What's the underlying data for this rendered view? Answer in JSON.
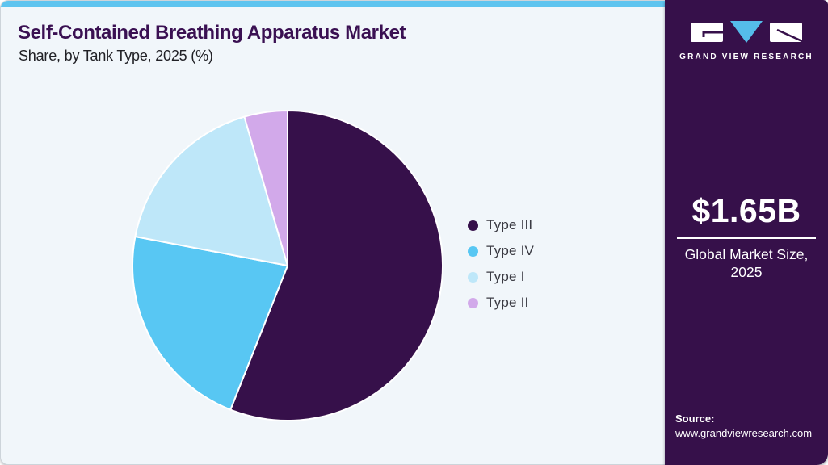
{
  "header": {
    "title": "Self-Contained Breathing Apparatus Market",
    "subtitle": "Share, by Tank Type, 2025 (%)"
  },
  "chart_data": {
    "type": "pie",
    "title": "Self-Contained Breathing Apparatus Market Share, by Tank Type, 2025 (%)",
    "categories": [
      "Type III",
      "Type IV",
      "Type I",
      "Type II"
    ],
    "values": [
      56.0,
      22.0,
      17.5,
      4.5
    ],
    "unit": "%",
    "colors": [
      "#36104A",
      "#58C7F3",
      "#BEE7F9",
      "#D2A9EA"
    ],
    "start_angle_deg": 0,
    "direction": "clockwise",
    "slice_border_color": "#FFFFFF",
    "legend_position": "right",
    "data_labels_shown": false
  },
  "legend": {
    "items": [
      {
        "label": "Type III",
        "color": "#36104A"
      },
      {
        "label": "Type IV",
        "color": "#58C7F3"
      },
      {
        "label": "Type I",
        "color": "#BEE7F9"
      },
      {
        "label": "Type II",
        "color": "#D2A9EA"
      }
    ]
  },
  "sidebar": {
    "logo_brand": "GRAND VIEW RESEARCH",
    "market_size_value": "$1.65B",
    "market_size_label": "Global Market Size, 2025",
    "source_label": "Source:",
    "source_url": "www.grandviewresearch.com"
  },
  "colors": {
    "accent_bar": "#5EC4EF",
    "main_background": "#F1F6FA",
    "sidebar_background": "#36104A",
    "title_text": "#3A1052",
    "logo_triangle": "#55BCEA"
  }
}
